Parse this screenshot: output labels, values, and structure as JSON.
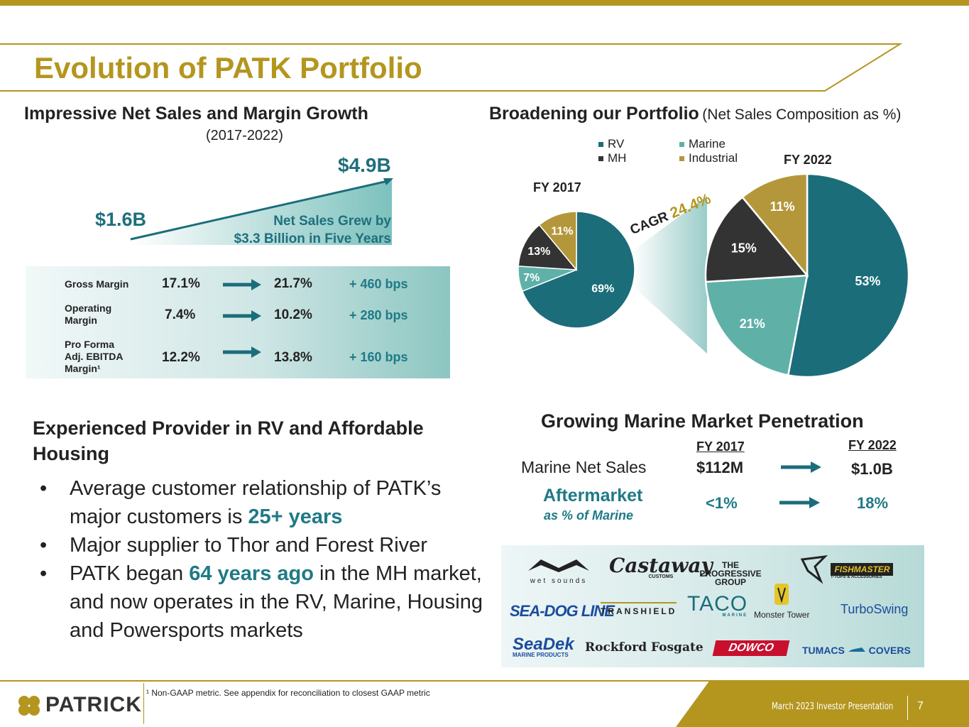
{
  "title": "Evolution of PATK Portfolio",
  "left_section": {
    "heading": "Impressive Net Sales and Margin Growth",
    "subheading": "(2017-2022)",
    "start_value": "$1.6B",
    "end_value": "$4.9B",
    "growth_note_line1": "Net Sales Grew by",
    "growth_note_line2": "$3.3 Billion in Five Years",
    "metrics": [
      {
        "label_lines": [
          "Gross Margin"
        ],
        "from": "17.1%",
        "to": "21.7%",
        "change": "+ 460 bps"
      },
      {
        "label_lines": [
          "Operating",
          "Margin"
        ],
        "from": "7.4%",
        "to": "10.2%",
        "change": "+ 280 bps"
      },
      {
        "label_lines": [
          "Pro Forma",
          "Adj. EBITDA",
          "Margin¹"
        ],
        "from": "12.2%",
        "to": "13.8%",
        "change": "+ 160 bps"
      }
    ]
  },
  "right_section": {
    "heading_bold": "Broadening our Portfolio",
    "heading_normal": "(Net Sales Composition as %)",
    "legend": [
      "RV",
      "Marine",
      "MH",
      "Industrial"
    ],
    "cagr_label": "CAGR",
    "cagr_value": "24.4%",
    "fy2017_label": "FY 2017",
    "fy2022_label": "FY 2022"
  },
  "chart_data": [
    {
      "type": "pie",
      "title": "FY 2017",
      "categories": [
        "RV",
        "Marine",
        "MH",
        "Industrial"
      ],
      "values": [
        69,
        7,
        13,
        11
      ],
      "colors": [
        "#1b6d7a",
        "#5fb1a8",
        "#333333",
        "#b4973a"
      ]
    },
    {
      "type": "pie",
      "title": "FY 2022",
      "categories": [
        "RV",
        "Marine",
        "MH",
        "Industrial"
      ],
      "values": [
        53,
        21,
        15,
        11
      ],
      "colors": [
        "#1b6d7a",
        "#5fb1a8",
        "#333333",
        "#b4973a"
      ]
    }
  ],
  "housing_section": {
    "heading_line1": "Experienced Provider in RV and Affordable",
    "heading_line2": "Housing",
    "bullet1_a": "Average customer relationship of PATK’s major customers is ",
    "bullet1_b": "25+ years",
    "bullet2": "Major supplier to Thor and Forest River",
    "bullet3_a": "PATK began ",
    "bullet3_b": "64 years ago",
    "bullet3_c": " in the MH market, and now operates in the RV, Marine, Housing and Powersports markets"
  },
  "marine_section": {
    "heading": "Growing Marine Market Penetration",
    "col_2017": "FY 2017",
    "col_2022": "FY 2022",
    "row1_label": "Marine Net Sales",
    "row1_2017": "$112M",
    "row1_2022": "$1.0B",
    "row2_label": "Aftermarket",
    "row2_sublabel": "as % of Marine",
    "row2_2017": "<1%",
    "row2_2022": "18%",
    "brands": [
      "wet sounds",
      "Castaway",
      "CUSTOMS",
      "THE PROGRESSIVE GROUP",
      "FISHMASTER",
      "T-TOPS & ACCESSORIES",
      "SEA-DOG LINE",
      "TRANSHIELD",
      "TACO",
      "MARINE",
      "Monster Tower",
      "TurboSwing",
      "SeaDek",
      "MARINE PRODUCTS",
      "Rockford Fosgate",
      "DOWCO",
      "TUMACS",
      "COVERS"
    ]
  },
  "footer": {
    "company": "PATRICK",
    "footnote": "¹ Non-GAAP metric. See appendix for reconciliation to closest GAAP metric",
    "presentation": "March 2023 Investor Presentation",
    "page": "7"
  },
  "colors": {
    "gold": "#b4961f",
    "teal": "#1f7a86",
    "dark": "#333333"
  }
}
